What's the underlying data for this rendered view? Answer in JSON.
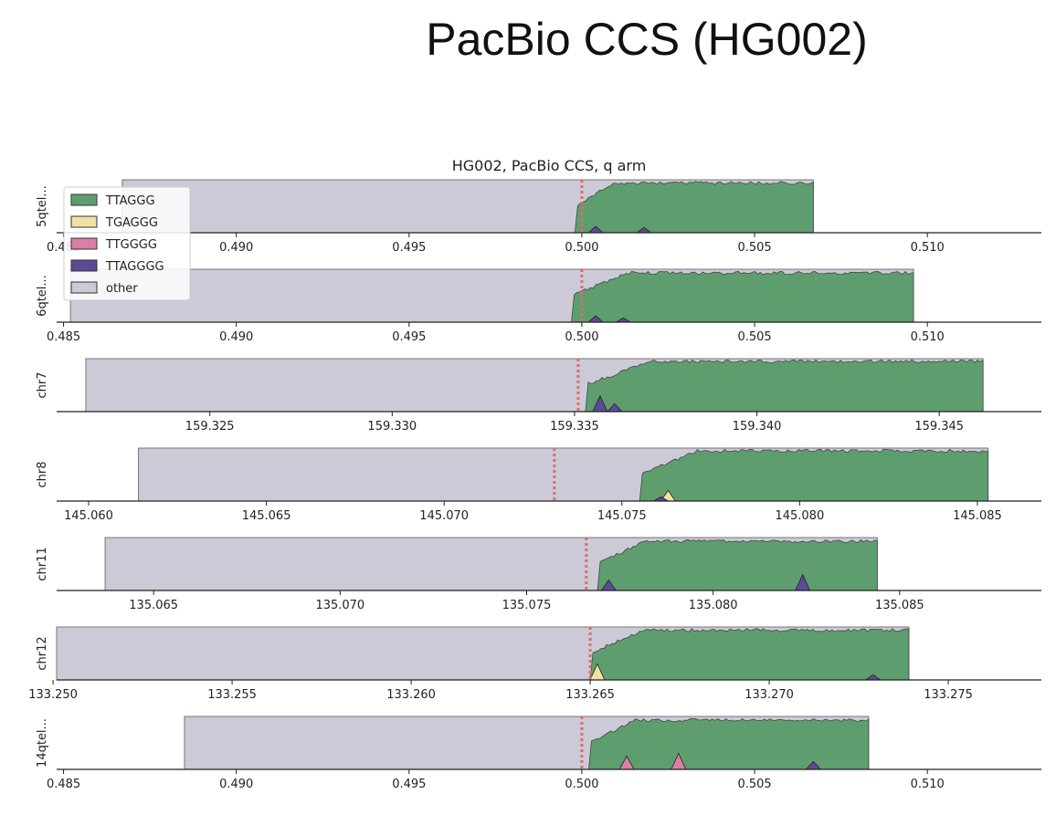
{
  "slide_title": "PacBio CCS (HG002)",
  "colors": {
    "TTAGGG": "#5e9e6e",
    "TGAGGG": "#f0e1a5",
    "TTGGGG": "#d97fa6",
    "TTAGGGG": "#5c4a96",
    "other": "#cbcad6",
    "boundary": "#e06b6b"
  },
  "chart_data": {
    "type": "area",
    "title": "HG002, PacBio CCS, q arm",
    "stacked": true,
    "normalized": true,
    "legend": {
      "placement": "top-left",
      "entries": [
        "TTAGGG",
        "TGAGGG",
        "TTGGGG",
        "TTAGGGG",
        "other"
      ]
    },
    "boundary_marker": "dotted vertical line at telomere start",
    "panels": [
      {
        "label": "5qtel...",
        "xticks": [
          "0.485",
          "0.490",
          "0.495",
          "0.500",
          "0.505",
          "0.510"
        ],
        "xlim": [
          0.4848,
          0.5133
        ],
        "boundary": 0.5,
        "other_start": 0.4867,
        "telomere_start": 0.4998,
        "data_end": 0.5067,
        "regions": [
          {
            "series": "TTAGGG",
            "from": 0.4998,
            "to": 0.5067,
            "fraction": 0.97
          }
        ],
        "spikes": [
          {
            "series": "TTAGGGG",
            "x": 0.5004,
            "height": 0.12
          },
          {
            "series": "TTAGGGG",
            "x": 0.5018,
            "height": 0.1
          }
        ]
      },
      {
        "label": "6qtel...",
        "xticks": [
          "0.485",
          "0.490",
          "0.495",
          "0.500",
          "0.505",
          "0.510"
        ],
        "xlim": [
          0.4848,
          0.5133
        ],
        "boundary": 0.5,
        "other_start": 0.4852,
        "telomere_start": 0.4997,
        "data_end": 0.5096,
        "regions": [
          {
            "series": "TTAGGG",
            "from": 0.4997,
            "to": 0.5096,
            "fraction": 0.96
          }
        ],
        "spikes": [
          {
            "series": "TTAGGGG",
            "x": 0.5004,
            "height": 0.12
          },
          {
            "series": "TTAGGGG",
            "x": 0.5012,
            "height": 0.08
          }
        ]
      },
      {
        "label": "chr7",
        "xticks": [
          "159.325",
          "159.330",
          "159.335",
          "159.340",
          "159.345"
        ],
        "xlim": [
          159.3208,
          159.3478
        ],
        "boundary": 159.3351,
        "other_start": 159.3216,
        "telomere_start": 159.3353,
        "data_end": 159.3462,
        "regions": [
          {
            "series": "TTAGGG",
            "from": 159.3353,
            "to": 159.3462,
            "fraction": 0.98
          }
        ],
        "spikes": [
          {
            "series": "TTAGGGG",
            "x": 159.3357,
            "height": 0.3
          },
          {
            "series": "TTAGGGG",
            "x": 159.3361,
            "height": 0.15
          }
        ]
      },
      {
        "label": "chr8",
        "xticks": [
          "145.060",
          "145.065",
          "145.070",
          "145.075",
          "145.080",
          "145.085"
        ],
        "xlim": [
          145.0591,
          145.0868
        ],
        "boundary": 145.0731,
        "other_start": 145.0614,
        "telomere_start": 145.0755,
        "data_end": 145.0853,
        "regions": [
          {
            "series": "TTAGGG",
            "from": 145.0755,
            "to": 145.0853,
            "fraction": 0.98
          }
        ],
        "spikes": [
          {
            "series": "TGAGGG",
            "x": 145.0763,
            "height": 0.2
          },
          {
            "series": "TTAGGGG",
            "x": 145.0761,
            "height": 0.08
          }
        ]
      },
      {
        "label": "chr11",
        "xticks": [
          "135.065",
          "135.070",
          "135.075",
          "135.080",
          "135.085"
        ],
        "xlim": [
          135.0624,
          135.0888
        ],
        "boundary": 135.0766,
        "other_start": 135.0637,
        "telomere_start": 135.0769,
        "data_end": 135.0844,
        "regions": [
          {
            "series": "TTAGGG",
            "from": 135.0769,
            "to": 135.0844,
            "fraction": 0.96
          }
        ],
        "spikes": [
          {
            "series": "TTAGGGG",
            "x": 135.0772,
            "height": 0.2
          },
          {
            "series": "TTAGGGG",
            "x": 135.0824,
            "height": 0.3
          }
        ]
      },
      {
        "label": "chr12",
        "xticks": [
          "133.250",
          "133.255",
          "133.260",
          "133.265",
          "133.270",
          "133.275"
        ],
        "xlim": [
          133.2501,
          133.2776
        ],
        "boundary": 133.265,
        "other_start": 133.2501,
        "telomere_start": 133.265,
        "data_end": 133.2739,
        "regions": [
          {
            "series": "TTAGGG",
            "from": 133.265,
            "to": 133.2739,
            "fraction": 0.97
          }
        ],
        "spikes": [
          {
            "series": "TGAGGG",
            "x": 133.2652,
            "height": 0.3
          },
          {
            "series": "TTAGGGG",
            "x": 133.2729,
            "height": 0.1
          }
        ]
      },
      {
        "label": "14qtel...",
        "xticks": [
          "0.485",
          "0.490",
          "0.495",
          "0.500",
          "0.505",
          "0.510"
        ],
        "xlim": [
          0.4848,
          0.5133
        ],
        "boundary": 0.5,
        "other_start": 0.4885,
        "telomere_start": 0.5002,
        "data_end": 0.5083,
        "regions": [
          {
            "series": "TTAGGG",
            "from": 0.5002,
            "to": 0.5083,
            "fraction": 0.96
          }
        ],
        "spikes": [
          {
            "series": "TTGGGG",
            "x": 0.5013,
            "height": 0.25
          },
          {
            "series": "TTGGGG",
            "x": 0.5028,
            "height": 0.3
          },
          {
            "series": "TTAGGGG",
            "x": 0.5067,
            "height": 0.15
          }
        ]
      }
    ]
  }
}
